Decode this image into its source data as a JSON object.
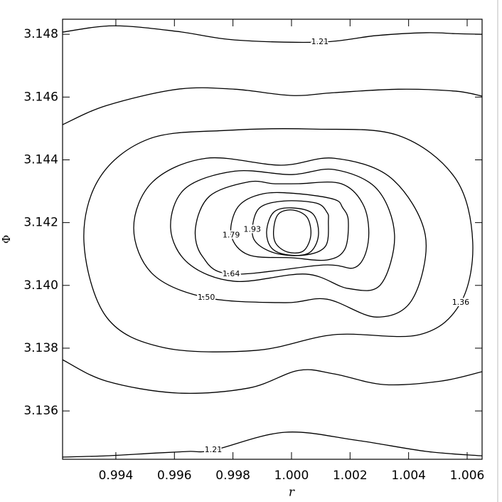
{
  "chart_data": {
    "type": "contour",
    "x_label": "r",
    "y_label": "Φ",
    "xlim": [
      0.99218,
      1.00651
    ],
    "ylim": [
      3.13446,
      3.14848
    ],
    "xticks": [
      0.994,
      0.996,
      0.998,
      {
        "value": 1,
        "label": "1.000"
      },
      1.002,
      1.004,
      1.006
    ],
    "yticks": [
      3.136,
      3.138,
      {
        "value": 3.14,
        "label": "3.140"
      },
      3.142,
      3.144,
      3.146,
      3.148
    ],
    "color": "#000000",
    "contours": [
      {
        "label": "1.21",
        "closed": false,
        "x": [
          0.99218,
          0.99393,
          0.99611,
          0.99806,
          1.00097,
          1.00291,
          1.00461,
          1.00559,
          1.00651
        ],
        "y": [
          3.14807,
          3.14827,
          3.14809,
          3.14782,
          3.14775,
          3.14796,
          3.14805,
          3.14802,
          3.148
        ]
      },
      {
        "closed": false,
        "x": [
          0.99218,
          0.99368,
          0.99611,
          0.99806,
          1.0,
          1.00146,
          1.00364,
          1.00559,
          1.00651
        ],
        "y": [
          3.14512,
          3.14573,
          3.14625,
          3.14625,
          3.14605,
          3.14614,
          3.14625,
          3.14619,
          3.14603
        ]
      },
      {
        "label": "1.36",
        "closed": true,
        "x": [
          0.99344,
          0.99514,
          0.99781,
          1.00073,
          1.00364,
          1.00559,
          1.00619,
          1.00578,
          1.00437,
          1.00146,
          0.99879,
          0.99563,
          0.99368,
          0.99291
        ],
        "y": [
          3.14342,
          3.14467,
          3.14494,
          3.14498,
          3.14478,
          3.14342,
          3.14138,
          3.13945,
          3.13843,
          3.13843,
          3.13793,
          3.13802,
          3.13899,
          3.14138
        ]
      },
      {
        "label": "1.50",
        "closed": true,
        "x": [
          1.0034,
          1.00457,
          1.00413,
          1.00291,
          1.00121,
          0.99976,
          0.99709,
          0.99526,
          0.99461,
          0.99526,
          0.99709,
          0.99964,
          1.00146
        ],
        "y": [
          3.14342,
          3.1416,
          3.13956,
          3.13899,
          3.13956,
          3.13945,
          3.13961,
          3.14036,
          3.14183,
          3.1433,
          3.14405,
          3.14383,
          3.14405
        ]
      },
      {
        "closed": true,
        "x": [
          0.99587,
          0.99636,
          0.99806,
          1.0,
          1.00146,
          1.00291,
          1.00352,
          1.00304,
          1.00194,
          1.00049,
          0.99806,
          0.99648
        ],
        "y": [
          3.14183,
          3.14308,
          3.14364,
          3.14353,
          3.14369,
          3.14308,
          3.1416,
          3.14002,
          3.1399,
          3.14036,
          3.14013,
          3.1407
        ]
      },
      {
        "label": "1.64",
        "closed": true,
        "x": [
          1.00024,
          1.0017,
          1.00248,
          1.00262,
          1.00219,
          1.00109,
          0.99794,
          0.99696,
          0.99672,
          0.99721,
          0.99854,
          0.99939
        ],
        "y": [
          3.14324,
          3.14324,
          3.14251,
          3.14138,
          3.14058,
          3.14065,
          3.14036,
          3.14092,
          3.14183,
          3.14285,
          3.1433,
          3.14324
        ]
      },
      {
        "label": "1.79",
        "closed": true,
        "x": [
          1.00194,
          1.00182,
          1.00121,
          1.0,
          0.99854,
          0.99794,
          0.99818,
          0.99903,
          1.00024,
          1.00146,
          1.00175
        ],
        "y": [
          3.14206,
          3.14115,
          3.14081,
          3.14088,
          3.14097,
          3.1416,
          3.14251,
          3.14292,
          3.14292,
          3.14274,
          3.14247
        ]
      },
      {
        "label": "1.93",
        "closed": true,
        "x": [
          1.00126,
          1.00117,
          1.00049,
          0.99951,
          0.99883,
          0.99866,
          0.99891,
          0.99976,
          1.00085,
          1.00121
        ],
        "y": [
          3.14206,
          3.14126,
          3.14097,
          3.14101,
          3.14133,
          3.14178,
          3.14247,
          3.14269,
          3.14262,
          3.14233
        ]
      },
      {
        "closed": true,
        "x": [
          0.99915,
          0.99939,
          1.0,
          1.00073,
          1.00092,
          1.00061,
          0.99988,
          0.99932
        ],
        "y": [
          3.14172,
          3.14233,
          3.14247,
          3.14228,
          3.1416,
          3.14104,
          3.14097,
          3.14119
        ]
      },
      {
        "closed": true,
        "x": [
          0.99939,
          0.99956,
          1.00005,
          1.00053,
          1.00066,
          1.00041,
          0.99988,
          0.99947
        ],
        "y": [
          3.14178,
          3.14228,
          3.1424,
          3.14217,
          3.1416,
          3.1411,
          3.14106,
          3.14133
        ]
      },
      {
        "closed": false,
        "x": [
          0.99218,
          0.99368,
          0.99611,
          0.99854,
          1.00024,
          1.00146,
          1.00316,
          1.0051,
          1.00651
        ],
        "y": [
          3.13763,
          3.13695,
          3.13657,
          3.13673,
          3.13729,
          3.13718,
          3.13684,
          3.13695,
          3.13725
        ]
      },
      {
        "label": "1.21",
        "closed": false,
        "x": [
          0.99218,
          0.99368,
          0.99539,
          0.99648,
          0.99733,
          0.99976,
          1.00219,
          1.00461,
          1.00651
        ],
        "y": [
          3.13453,
          3.13457,
          3.13466,
          3.13471,
          3.13475,
          3.13532,
          3.13507,
          3.13471,
          3.13457
        ]
      }
    ]
  }
}
